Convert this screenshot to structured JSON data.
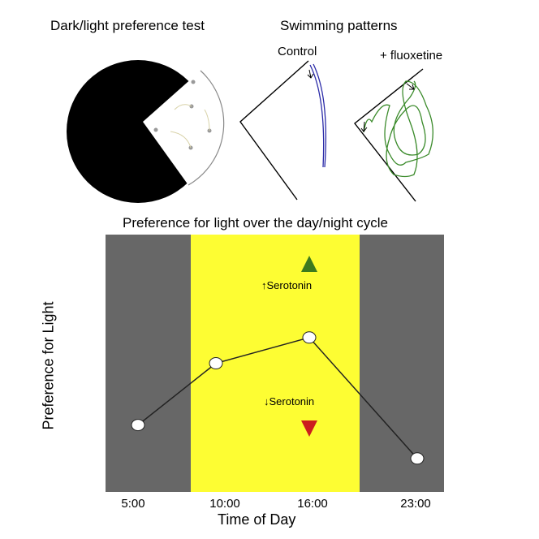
{
  "panels": {
    "dark_light": {
      "title": "Dark/light preference test"
    },
    "swimming": {
      "title": "Swimming patterns",
      "control_label": "Control",
      "fluoxetine_label": "+ fluoxetine",
      "control_color": "#2b2ba8",
      "fluoxetine_color": "#3a8a2a"
    }
  },
  "chart_data": {
    "type": "line",
    "title": "Preference for light over the day/night cycle",
    "xlabel": "Time of Day",
    "ylabel": "Preference for Light",
    "categories": [
      "5:00",
      "10:00",
      "16:00",
      "23:00"
    ],
    "series": [
      {
        "name": "Preference for light",
        "values": [
          0.26,
          0.5,
          0.6,
          0.13
        ]
      }
    ],
    "ylim": [
      0,
      1
    ],
    "background_bands": [
      {
        "label": "night",
        "color": "#676767"
      },
      {
        "label": "day",
        "color": "#fdfd33"
      },
      {
        "label": "night",
        "color": "#676767"
      }
    ],
    "annotations": {
      "up": {
        "text": "↑Serotonin",
        "color": "#3c7a1e"
      },
      "down": {
        "text": "↓Serotonin",
        "color": "#cc1e1e"
      }
    },
    "grid": false
  }
}
